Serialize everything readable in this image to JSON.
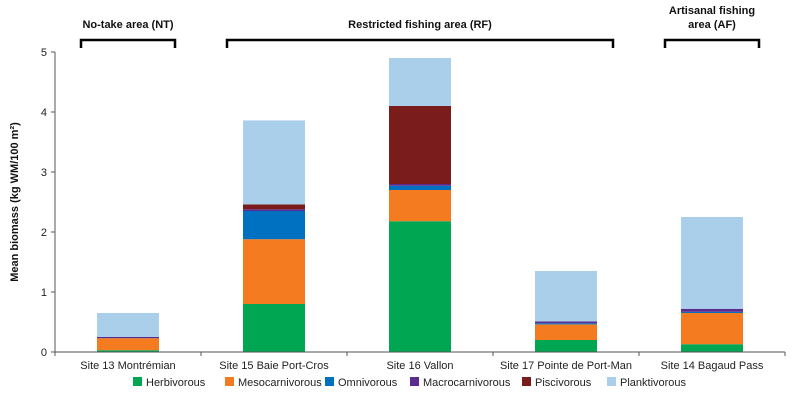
{
  "chart_data": {
    "type": "bar",
    "stacked": true,
    "categories": [
      "Site 13 Montrémian",
      "Site 15 Baie Port-Cros",
      "Site 16 Vallon",
      "Site 17 Pointe de Port-Man",
      "Site 14 Bagaud Pass"
    ],
    "series": [
      {
        "name": "Herbivorous",
        "color": "#00a651",
        "values": [
          0.03,
          0.8,
          2.18,
          0.2,
          0.13
        ]
      },
      {
        "name": "Mesocarnivorous",
        "color": "#f47b20",
        "values": [
          0.2,
          1.08,
          0.52,
          0.26,
          0.52
        ]
      },
      {
        "name": "Omnivorous",
        "color": "#0070c0",
        "values": [
          0.0,
          0.47,
          0.07,
          0.02,
          0.02
        ]
      },
      {
        "name": "Macrocarnivorous",
        "color": "#5b2c8f",
        "values": [
          0.02,
          0.03,
          0.03,
          0.03,
          0.05
        ]
      },
      {
        "name": "Piscivorous",
        "color": "#7b1c1c",
        "values": [
          0.0,
          0.08,
          1.3,
          0.0,
          0.0
        ]
      },
      {
        "name": "Planktivorous",
        "color": "#a9cfea",
        "values": [
          0.4,
          1.4,
          0.8,
          0.84,
          1.53
        ]
      }
    ],
    "ylabel": "Mean biomass (kg WM/100 m²)",
    "xlabel": "",
    "ylim": [
      0,
      5
    ],
    "yticks": [
      "0",
      "1",
      "2",
      "3",
      "4",
      "5"
    ],
    "grid": false,
    "legend_position": "bottom",
    "regions": [
      {
        "label_lines": [
          "No-take area (NT)"
        ],
        "from_category": 0,
        "to_category": 0
      },
      {
        "label_lines": [
          "Restricted fishing area (RF)"
        ],
        "from_category": 1,
        "to_category": 3
      },
      {
        "label_lines": [
          "Artisanal fishing",
          "area (AF)"
        ],
        "from_category": 4,
        "to_category": 4
      }
    ]
  }
}
